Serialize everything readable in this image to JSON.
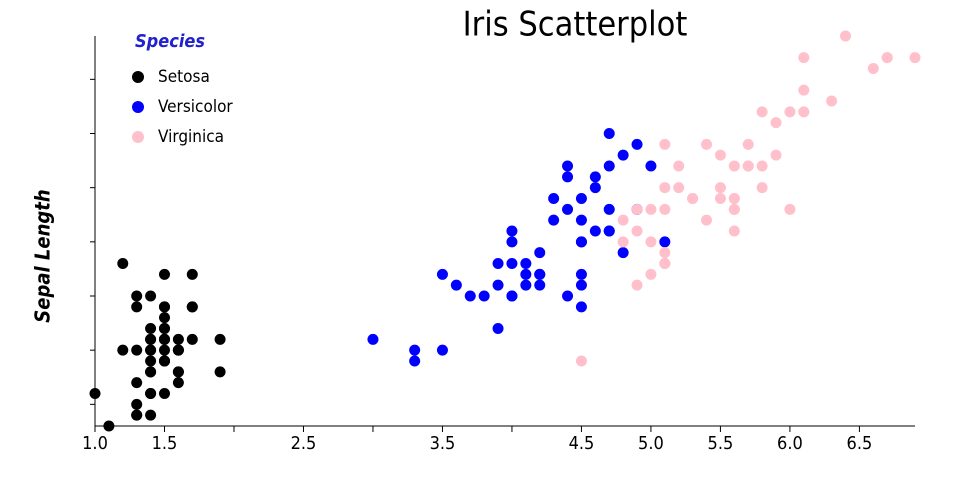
{
  "chart_data": {
    "type": "scatter",
    "title": "Iris Scatterplot",
    "y_label": "Sepal Length",
    "legend_title": "Species",
    "legend": "upper left",
    "xlim": [
      1.0,
      6.9
    ],
    "ylim": [
      4.3,
      7.9
    ],
    "xticks": [
      {
        "value": 1.0,
        "label": "1.0"
      },
      1.5,
      2.5,
      3.5,
      4.5,
      {
        "value": 5.0,
        "label": "5.0"
      },
      5.5,
      {
        "value": 6.0,
        "label": "6.0"
      },
      6.5
    ],
    "xticks_minor": [
      2,
      3,
      4
    ],
    "yticks": [
      4.5,
      5,
      5.5,
      6,
      6.5,
      7,
      7.5
    ],
    "series": [
      {
        "name": "Setosa",
        "color": "#000000",
        "x": [
          1.4,
          1.4,
          1.3,
          1.5,
          1.4,
          1.7,
          1.4,
          1.5,
          1.4,
          1.5,
          1.5,
          1.6,
          1.4,
          1.1,
          1.2,
          1.5,
          1.3,
          1.4,
          1.7,
          1.5,
          1.7,
          1.5,
          1.0,
          1.7,
          1.9,
          1.6,
          1.6,
          1.5,
          1.4,
          1.6,
          1.6,
          1.5,
          1.5,
          1.4,
          1.5,
          1.2,
          1.3,
          1.5,
          1.3,
          1.5,
          1.3,
          1.3,
          1.3,
          1.6,
          1.9,
          1.4,
          1.6,
          1.4,
          1.5,
          1.4
        ],
        "values": [
          5.1,
          4.9,
          4.7,
          4.6,
          5.0,
          5.4,
          4.6,
          5.0,
          4.4,
          4.9,
          5.4,
          4.8,
          4.8,
          4.3,
          5.8,
          5.7,
          5.4,
          5.1,
          5.7,
          5.1,
          5.4,
          5.1,
          4.6,
          5.1,
          4.8,
          5.0,
          5.0,
          5.2,
          5.2,
          4.7,
          4.8,
          5.4,
          5.2,
          5.5,
          4.9,
          5.0,
          5.5,
          4.9,
          4.4,
          5.1,
          5.0,
          4.5,
          4.4,
          5.0,
          5.1,
          4.8,
          5.1,
          4.6,
          5.3,
          5.0
        ]
      },
      {
        "name": "Versicolor",
        "color": "#0000ff",
        "x": [
          4.7,
          4.5,
          4.9,
          4.0,
          4.6,
          4.5,
          4.7,
          3.3,
          4.6,
          3.9,
          3.5,
          4.2,
          4.0,
          4.7,
          3.6,
          4.4,
          4.5,
          4.1,
          4.5,
          3.9,
          4.8,
          4.0,
          4.9,
          4.7,
          4.3,
          4.4,
          4.8,
          5.0,
          4.5,
          3.5,
          3.8,
          3.7,
          3.9,
          5.1,
          4.5,
          4.5,
          4.7,
          4.4,
          4.1,
          4.0,
          4.4,
          4.6,
          4.0,
          3.3,
          4.2,
          4.2,
          4.2,
          4.3,
          3.0,
          4.1
        ],
        "values": [
          7.0,
          6.4,
          6.9,
          5.5,
          6.5,
          5.7,
          6.3,
          4.9,
          6.6,
          5.2,
          5.0,
          5.9,
          6.0,
          6.1,
          5.6,
          6.7,
          5.6,
          5.8,
          6.2,
          5.6,
          5.9,
          6.1,
          6.3,
          6.1,
          6.4,
          6.6,
          6.8,
          6.7,
          6.0,
          5.7,
          5.5,
          5.5,
          5.8,
          6.0,
          5.4,
          6.0,
          6.7,
          6.3,
          5.6,
          5.5,
          5.5,
          6.1,
          5.8,
          5.0,
          5.6,
          5.7,
          5.7,
          6.2,
          5.1,
          5.7
        ]
      },
      {
        "name": "Virginica",
        "color": "#ffc0cb",
        "x": [
          6.0,
          5.1,
          5.9,
          5.6,
          5.8,
          6.6,
          4.5,
          6.3,
          5.8,
          6.1,
          5.1,
          5.3,
          5.5,
          5.0,
          5.1,
          5.3,
          5.5,
          6.7,
          6.9,
          5.0,
          5.7,
          4.9,
          6.7,
          4.9,
          5.7,
          6.0,
          4.8,
          4.9,
          5.6,
          5.8,
          6.1,
          6.4,
          5.6,
          5.1,
          5.6,
          6.1,
          5.6,
          5.5,
          4.8,
          5.4,
          5.6,
          5.1,
          5.1,
          5.9,
          5.7,
          5.2,
          5.0,
          5.2,
          5.4,
          5.1
        ],
        "values": [
          6.3,
          5.8,
          7.1,
          6.3,
          6.5,
          7.6,
          4.9,
          7.3,
          6.7,
          7.2,
          6.5,
          6.4,
          6.8,
          5.7,
          5.8,
          6.4,
          6.5,
          7.7,
          7.7,
          6.0,
          6.9,
          5.6,
          7.7,
          6.3,
          6.7,
          7.2,
          6.2,
          6.1,
          6.4,
          7.2,
          7.4,
          7.9,
          6.4,
          6.3,
          6.1,
          7.7,
          6.3,
          6.4,
          6.0,
          6.9,
          6.7,
          6.9,
          5.8,
          6.8,
          6.7,
          6.7,
          6.3,
          6.5,
          6.2,
          5.9
        ]
      }
    ]
  }
}
